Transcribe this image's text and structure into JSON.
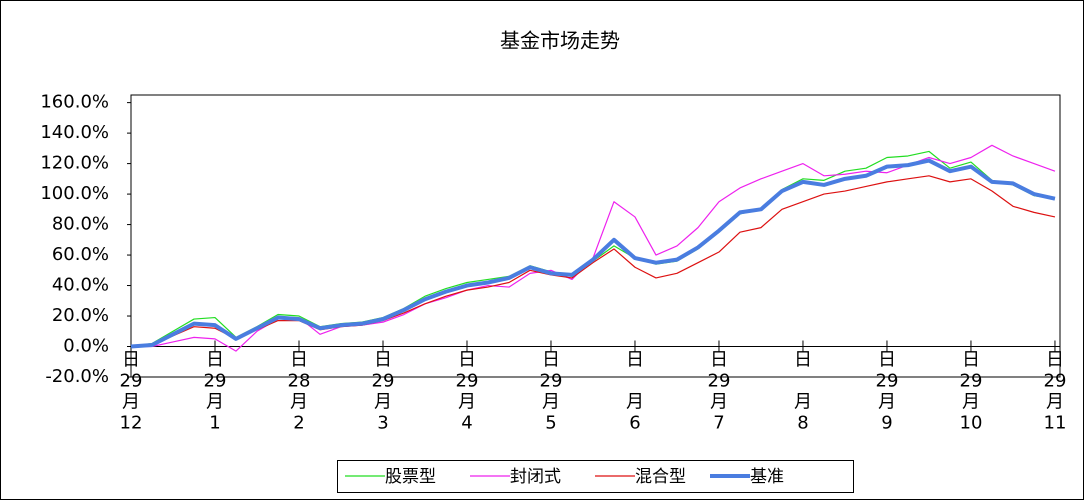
{
  "chart_data": {
    "type": "line",
    "title": "基金市场走势",
    "x": [
      0,
      0.25,
      0.5,
      0.75,
      1,
      1.25,
      1.5,
      1.75,
      2,
      2.25,
      2.5,
      2.75,
      3,
      3.25,
      3.5,
      3.75,
      4,
      4.25,
      4.5,
      4.75,
      5,
      5.25,
      5.5,
      5.75,
      6,
      6.25,
      6.5,
      6.75,
      7,
      7.25,
      7.5,
      7.75,
      8,
      8.25,
      8.5,
      8.75,
      9,
      9.25,
      9.5,
      9.75,
      10,
      10.25,
      10.5,
      10.75,
      11
    ],
    "series": [
      {
        "name": "股票型",
        "color": "#22dd22",
        "width": 1.2,
        "values": [
          0,
          2,
          10,
          18,
          19,
          6,
          13,
          21,
          20,
          13,
          15,
          16,
          19,
          25,
          33,
          38,
          42,
          44,
          46,
          53,
          49,
          46,
          56,
          66,
          58,
          54,
          56,
          64,
          75,
          87,
          90,
          103,
          110,
          109,
          115,
          117,
          124,
          125,
          128,
          117,
          121,
          109,
          106,
          99,
          97
        ]
      },
      {
        "name": "封闭式",
        "color": "#ee22ee",
        "width": 1.2,
        "values": [
          0,
          0,
          3,
          6,
          5,
          -3,
          10,
          18,
          19,
          8,
          13,
          14,
          16,
          21,
          28,
          32,
          37,
          40,
          39,
          48,
          50,
          44,
          58,
          95,
          85,
          60,
          66,
          78,
          95,
          104,
          110,
          115,
          120,
          112,
          113,
          115,
          114,
          119,
          124,
          120,
          124,
          132,
          125,
          120,
          115
        ]
      },
      {
        "name": "混合型",
        "color": "#dd1111",
        "width": 1.2,
        "values": [
          0,
          1,
          7,
          13,
          12,
          5,
          11,
          17,
          17,
          11,
          13,
          14,
          17,
          22,
          28,
          33,
          37,
          39,
          42,
          50,
          47,
          45,
          55,
          64,
          52,
          45,
          48,
          55,
          62,
          75,
          78,
          90,
          95,
          100,
          102,
          105,
          108,
          110,
          112,
          108,
          110,
          102,
          92,
          88,
          85
        ]
      },
      {
        "name": "基准",
        "color": "#4a7de0",
        "width": 4,
        "values": [
          0,
          1,
          8,
          15,
          14,
          5,
          12,
          19,
          18,
          12,
          14,
          15,
          18,
          24,
          31,
          36,
          40,
          42,
          45,
          52,
          48,
          47,
          57,
          70,
          58,
          55,
          57,
          65,
          76,
          88,
          90,
          102,
          108,
          106,
          110,
          112,
          118,
          119,
          122,
          115,
          118,
          108,
          107,
          100,
          97
        ]
      }
    ],
    "xlim": [
      0,
      11.06
    ],
    "xticks": [
      {
        "value": 0,
        "label": [
          "日",
          "29",
          "月",
          "12"
        ]
      },
      {
        "value": 1,
        "label": [
          "日",
          "29",
          "月",
          "1"
        ]
      },
      {
        "value": 2,
        "label": [
          "日",
          "28",
          "月",
          "2"
        ]
      },
      {
        "value": 3,
        "label": [
          "日",
          "29",
          "月",
          "3"
        ]
      },
      {
        "value": 4,
        "label": [
          "日",
          "29",
          "月",
          "4"
        ]
      },
      {
        "value": 5,
        "label": [
          "日",
          "29",
          "月",
          "5"
        ]
      },
      {
        "value": 6,
        "label": [
          "日",
          null,
          "月",
          "6"
        ]
      },
      {
        "value": 7,
        "label": [
          "日",
          "29",
          "月",
          "7"
        ]
      },
      {
        "value": 8,
        "label": [
          "日",
          null,
          "月",
          "8"
        ]
      },
      {
        "value": 9,
        "label": [
          "日",
          "29",
          "月",
          "9"
        ]
      },
      {
        "value": 10,
        "label": [
          "日",
          "29",
          "月",
          "10"
        ]
      },
      {
        "value": 11,
        "label": [
          "日",
          "29",
          "月",
          "11"
        ]
      }
    ],
    "ylim": [
      -20,
      165
    ],
    "yticks": [
      {
        "value": -20,
        "label": "-20.0%"
      },
      {
        "value": 0,
        "label": "0.0%"
      },
      {
        "value": 20,
        "label": "20.0%"
      },
      {
        "value": 40,
        "label": "40.0%"
      },
      {
        "value": 60,
        "label": "60.0%"
      },
      {
        "value": 80,
        "label": "80.0%"
      },
      {
        "value": 100,
        "label": "100.0%"
      },
      {
        "value": 120,
        "label": "120.0%"
      },
      {
        "value": 140,
        "label": "140.0%"
      },
      {
        "value": 160,
        "label": "160.0%"
      }
    ],
    "grid": false
  }
}
